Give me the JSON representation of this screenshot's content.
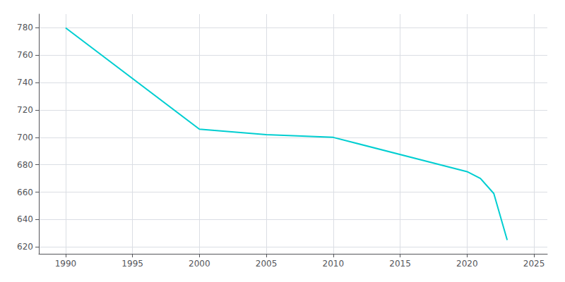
{
  "chart_data": {
    "type": "line",
    "x": [
      1990,
      2000,
      2005,
      2010,
      2020,
      2021,
      2022,
      2023
    ],
    "values": [
      780,
      706,
      702,
      700,
      675,
      670,
      659,
      625
    ],
    "color": "#00CED1",
    "xlim": [
      1988,
      2026
    ],
    "ylim": [
      615,
      790
    ],
    "xticks": [
      1990,
      1995,
      2000,
      2005,
      2010,
      2015,
      2020,
      2025
    ],
    "yticks": [
      620,
      640,
      660,
      680,
      700,
      720,
      740,
      760,
      780
    ],
    "grid": true
  }
}
